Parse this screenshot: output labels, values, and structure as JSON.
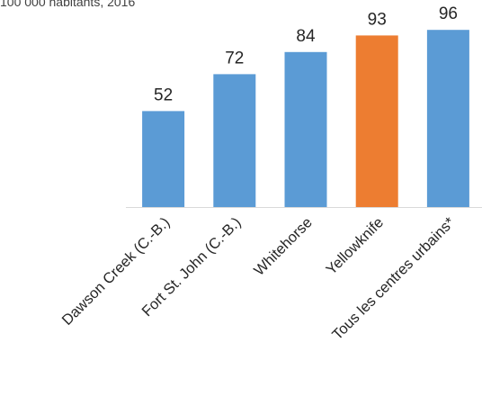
{
  "header_fragment": "100 000 habitants, 2016",
  "chart_data": {
    "type": "bar",
    "title": "",
    "xlabel": "",
    "ylabel": "",
    "categories": [
      "Dawson Creek (C.-B.)",
      "Fort St. John (C.-B.)",
      "Whitehorse",
      "Yellowknife",
      "Tous les centres urbains*"
    ],
    "values": [
      52,
      72,
      84,
      93,
      96
    ],
    "colors": [
      "#5b9bd5",
      "#5b9bd5",
      "#5b9bd5",
      "#ed7d31",
      "#5b9bd5"
    ],
    "ylim": [
      0,
      100
    ],
    "grid": false,
    "legend": "none",
    "data_labels": true
  }
}
